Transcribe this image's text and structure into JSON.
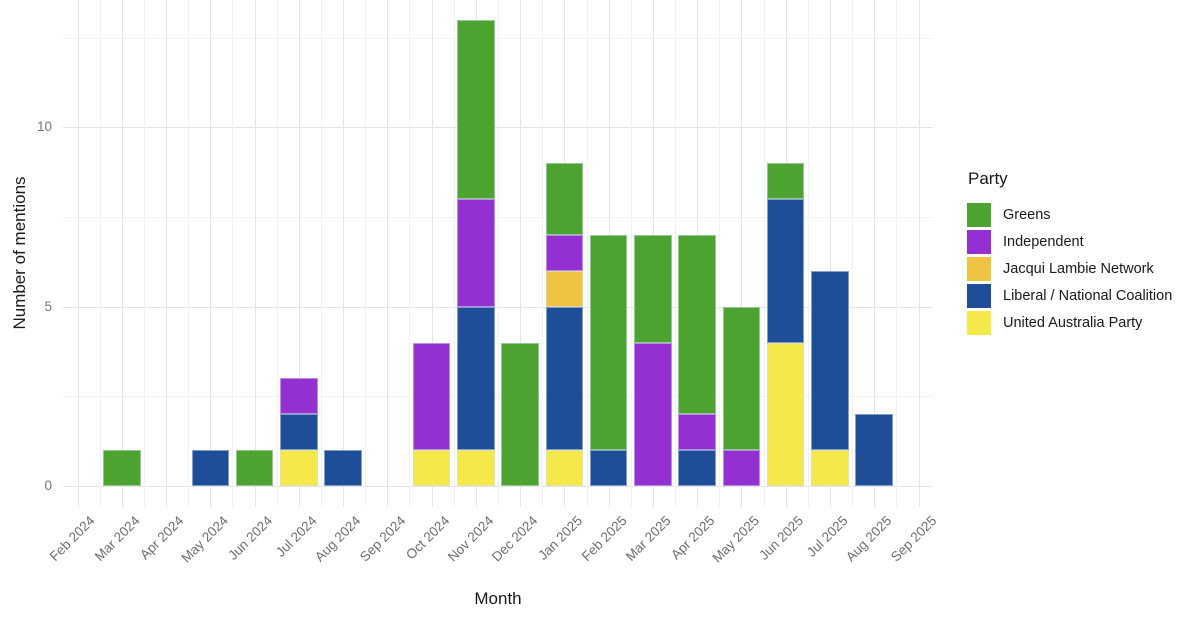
{
  "chart_data": {
    "type": "bar",
    "stacked": true,
    "xlabel": "Month",
    "ylabel": "Number of mentions",
    "legend_title": "Party",
    "legend_position": "right",
    "grid": true,
    "background": "#ffffff",
    "y_ticks": [
      0,
      5,
      10
    ],
    "y_minor_ticks": [
      2.5,
      7.5,
      12.5
    ],
    "ylim": [
      0,
      13.65
    ],
    "categories": [
      "Feb 2024",
      "Mar 2024",
      "Apr 2024",
      "May 2024",
      "Jun 2024",
      "Jul 2024",
      "Aug 2024",
      "Sep 2024",
      "Oct 2024",
      "Nov 2024",
      "Dec 2024",
      "Jan 2025",
      "Feb 2025",
      "Mar 2025",
      "Apr 2025",
      "May 2025",
      "Jun 2025",
      "Jul 2025",
      "Aug 2025",
      "Sep 2025"
    ],
    "series": [
      {
        "name": "Greens",
        "color": "#4CA330",
        "values": [
          0,
          1,
          0,
          0,
          1,
          0,
          0,
          0,
          0,
          5,
          4,
          2,
          6,
          3,
          5,
          4,
          1,
          0,
          0,
          0
        ]
      },
      {
        "name": "Independent",
        "color": "#9430D1",
        "values": [
          0,
          0,
          0,
          0,
          0,
          1,
          0,
          0,
          3,
          3,
          0,
          1,
          0,
          4,
          1,
          1,
          0,
          0,
          0,
          0
        ]
      },
      {
        "name": "Jacqui Lambie Network",
        "color": "#EFC443",
        "values": [
          0,
          0,
          0,
          0,
          0,
          0,
          0,
          0,
          0,
          0,
          0,
          1,
          0,
          0,
          0,
          0,
          0,
          0,
          0,
          0
        ]
      },
      {
        "name": "Liberal / National Coalition",
        "color": "#1F4E99",
        "values": [
          0,
          0,
          0,
          1,
          0,
          1,
          1,
          0,
          0,
          4,
          0,
          4,
          1,
          0,
          1,
          0,
          4,
          5,
          2,
          0
        ]
      },
      {
        "name": "United Australia Party",
        "color": "#F5E84B",
        "values": [
          0,
          0,
          0,
          0,
          0,
          1,
          0,
          0,
          1,
          1,
          0,
          1,
          0,
          0,
          0,
          0,
          4,
          1,
          0,
          0
        ]
      }
    ],
    "stack_order_bottom_to_top": [
      "United Australia Party",
      "Liberal / National Coalition",
      "Jacqui Lambie Network",
      "Independent",
      "Greens"
    ],
    "monthly_totals": [
      0,
      1,
      0,
      1,
      1,
      3,
      1,
      0,
      4,
      13,
      4,
      9,
      7,
      7,
      7,
      5,
      9,
      6,
      2,
      0
    ]
  }
}
